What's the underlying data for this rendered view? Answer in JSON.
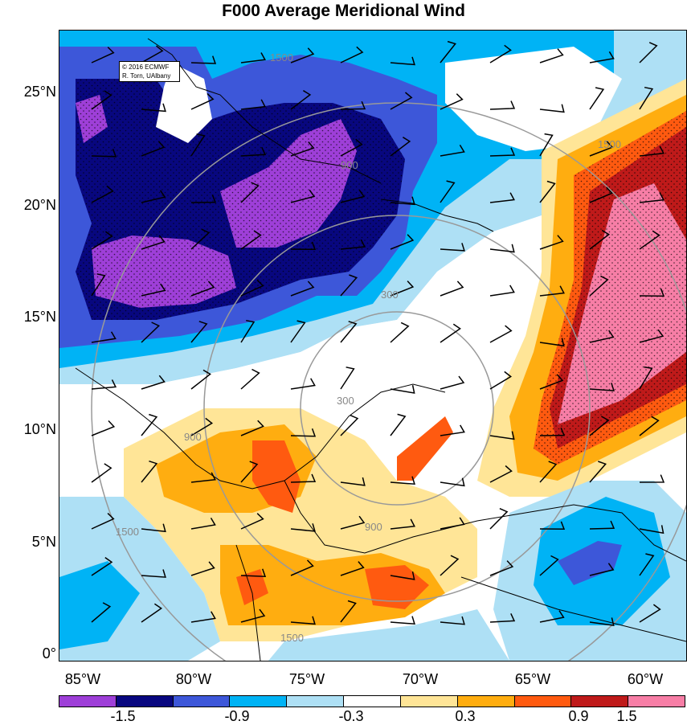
{
  "title": "F000 Average Meridional Wind",
  "credit": {
    "line1": "© 2016 ECMWF",
    "line2": "R. Torn, UAlbany"
  },
  "lat_labels": [
    "25°N",
    "20°N",
    "15°N",
    "10°N",
    "5°N",
    "0°"
  ],
  "lon_labels": [
    "85°W",
    "80°W",
    "75°W",
    "70°W",
    "65°W",
    "60°W"
  ],
  "range_ring_labels": [
    "300",
    "900",
    "1500"
  ],
  "colorbar": {
    "colors": [
      "#9e3fd8",
      "#08077f",
      "#3d57d9",
      "#00b3f5",
      "#aee0f5",
      "#ffffff",
      "#ffe597",
      "#ffad10",
      "#ff5a10",
      "#bf1a1a",
      "#f77ea6"
    ],
    "labels": [
      "-1.5",
      "-0.9",
      "-0.3",
      "0.3",
      "0.9",
      "1.5"
    ]
  },
  "colors": {
    "purple": "#9e3fd8",
    "navy": "#08077f",
    "blue": "#3d57d9",
    "cyan": "#00b3f5",
    "light_blue": "#aee0f5",
    "yellow": "#ffe597",
    "orange": "#ffad10",
    "red_orange": "#ff5a10",
    "dark_red": "#bf1a1a",
    "pink": "#f77ea6"
  }
}
